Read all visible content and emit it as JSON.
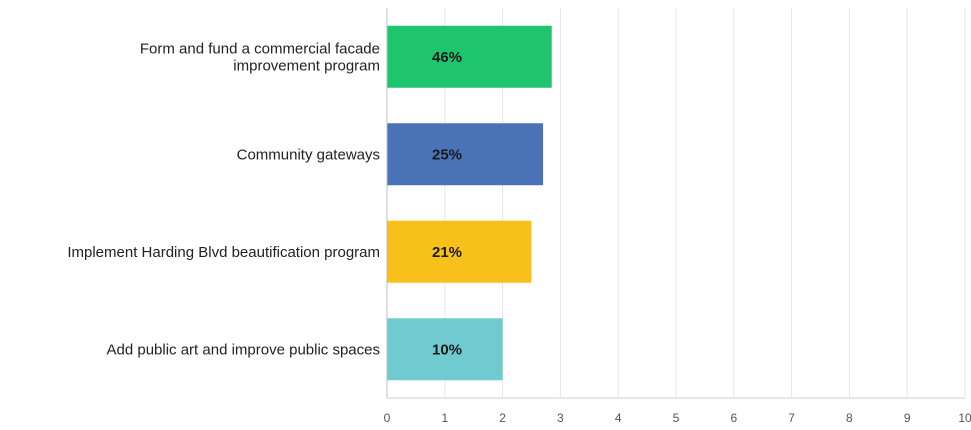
{
  "chart_data": {
    "type": "bar",
    "orientation": "horizontal",
    "categories": [
      [
        "Form and fund a commercial facade",
        "improvement program"
      ],
      [
        "Community gateways"
      ],
      [
        "Implement Harding Blvd beautification program"
      ],
      [
        "Add public art and improve public spaces"
      ]
    ],
    "values": [
      2.85,
      2.7,
      2.5,
      2.0
    ],
    "data_labels": [
      "46%",
      "25%",
      "21%",
      "10%"
    ],
    "colors": [
      "#1fc46f",
      "#4a72b6",
      "#f7c01b",
      "#6fcbd0"
    ],
    "xlim": [
      0,
      10
    ],
    "xticks": [
      "0",
      "1",
      "2",
      "3",
      "4",
      "5",
      "6",
      "7",
      "8",
      "9",
      "10"
    ],
    "grid": true,
    "title": "",
    "xlabel": "",
    "ylabel": ""
  }
}
